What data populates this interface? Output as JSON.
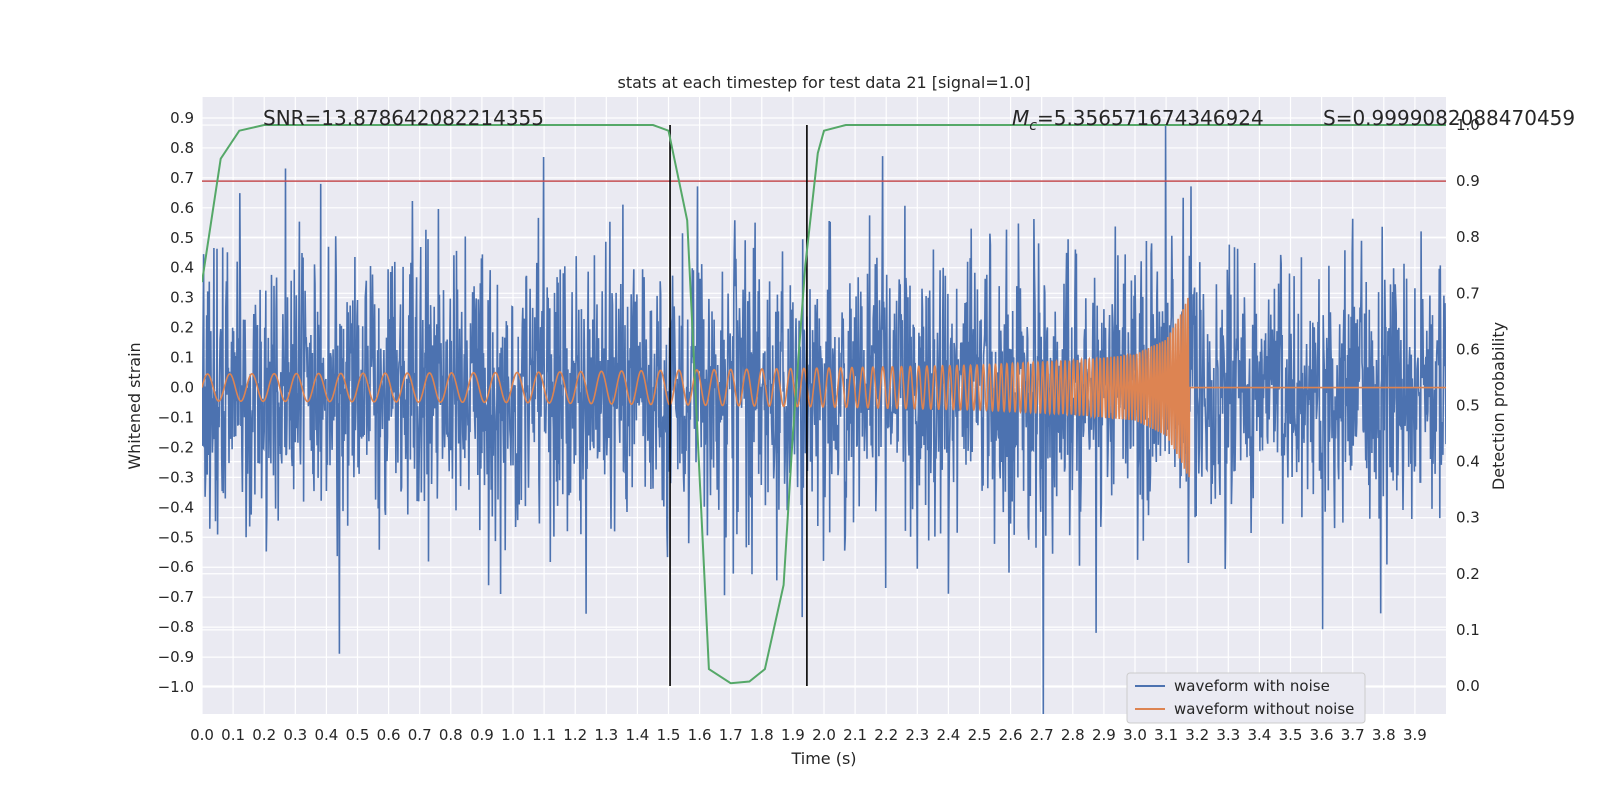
{
  "chart_data": {
    "type": "line",
    "title": "stats at each timestep for test data 21 [signal=1.0]",
    "xlabel": "Time (s)",
    "ylabel": "Whitened strain",
    "y2label": "Detection probability",
    "xlim": [
      0.0,
      4.0
    ],
    "ylim": [
      -1.09,
      0.97
    ],
    "y2lim": [
      -0.05,
      1.05
    ],
    "x_ticks": [
      0.0,
      0.1,
      0.2,
      0.3,
      0.4,
      0.5,
      0.6,
      0.7,
      0.8,
      0.9,
      1.0,
      1.1,
      1.2,
      1.3,
      1.4,
      1.5,
      1.6,
      1.7,
      1.8,
      1.9,
      2.0,
      2.1,
      2.2,
      2.3,
      2.4,
      2.5,
      2.6,
      2.7,
      2.8,
      2.9,
      3.0,
      3.1,
      3.2,
      3.3,
      3.4,
      3.5,
      3.6,
      3.7,
      3.8,
      3.9
    ],
    "x_tick_labels": [
      "0.0",
      "0.1",
      "0.2",
      "0.3",
      "0.4",
      "0.5",
      "0.6",
      "0.7",
      "0.8",
      "0.9",
      "1.0",
      "1.1",
      "1.2",
      "1.3",
      "1.4",
      "1.5",
      "1.6",
      "1.7",
      "1.8",
      "1.9",
      "2.0",
      "2.1",
      "2.2",
      "2.3",
      "2.4",
      "2.5",
      "2.6",
      "2.7",
      "2.8",
      "2.9",
      "3.0",
      "3.1",
      "3.2",
      "3.3",
      "3.4",
      "3.5",
      "3.6",
      "3.7",
      "3.8",
      "3.9"
    ],
    "y_ticks": [
      0.9,
      0.8,
      0.7,
      0.6,
      0.5,
      0.4,
      0.3,
      0.2,
      0.1,
      0.0,
      -0.1,
      -0.2,
      -0.3,
      -0.4,
      -0.5,
      -0.6,
      -0.7,
      -0.8,
      -0.9,
      -1.0
    ],
    "y_tick_labels": [
      "0.9",
      "0.8",
      "0.7",
      "0.6",
      "0.5",
      "0.4",
      "0.3",
      "0.2",
      "0.1",
      "0.0",
      "−0.1",
      "−0.2",
      "−0.3",
      "−0.4",
      "−0.5",
      "−0.6",
      "−0.7",
      "−0.8",
      "−0.9",
      "−1.0"
    ],
    "y2_ticks": [
      1.0,
      0.9,
      0.8,
      0.7,
      0.6,
      0.5,
      0.4,
      0.3,
      0.2,
      0.1,
      0.0
    ],
    "y2_tick_labels": [
      "1.0",
      "0.9",
      "0.8",
      "0.7",
      "0.6",
      "0.5",
      "0.4",
      "0.3",
      "0.2",
      "0.1",
      "0.0"
    ],
    "grid": true,
    "legend_placement": "lower-right",
    "annotations": {
      "snr": "SNR=13.878642082214355",
      "mc_symbol": "M",
      "mc_sub": "c",
      "mc_value": "=5.356571674346924",
      "s": "S=0.9999082088470459"
    },
    "threshold_line": {
      "axis": "y2",
      "value": 0.9,
      "color": "#c44e52"
    },
    "vertical_lines": [
      1.505,
      1.945
    ],
    "series": [
      {
        "name": "waveform with noise",
        "color": "#4c72b0",
        "axis": "y",
        "amplitude_envelope_x": [
          0.0,
          0.5,
          1.0,
          1.5,
          2.0,
          2.5,
          3.0,
          3.1,
          3.17,
          3.3,
          3.6,
          4.0
        ],
        "amplitude_envelope_y": [
          0.55,
          0.55,
          0.55,
          0.56,
          0.56,
          0.56,
          0.58,
          0.6,
          0.62,
          0.55,
          0.55,
          0.55
        ]
      },
      {
        "name": "waveform without noise",
        "color": "#dd8452",
        "axis": "y",
        "amplitude_x": [
          0.0,
          1.0,
          2.0,
          2.5,
          2.8,
          3.0,
          3.1,
          3.15,
          3.17
        ],
        "amplitude_y": [
          0.045,
          0.05,
          0.065,
          0.075,
          0.09,
          0.11,
          0.16,
          0.25,
          0.3
        ],
        "merger_time": 3.175,
        "freq_start_hz": 14,
        "freq_end_hz": 130
      },
      {
        "name": "detection probability",
        "color": "#55a868",
        "axis": "y2",
        "x": [
          0.0,
          0.06,
          0.12,
          0.2,
          0.3,
          0.5,
          1.0,
          1.45,
          1.5,
          1.56,
          1.63,
          1.7,
          1.76,
          1.81,
          1.87,
          1.9,
          1.94,
          1.98,
          2.0,
          2.07,
          2.2,
          2.5,
          3.0,
          3.5,
          4.0
        ],
        "y": [
          0.72,
          0.94,
          0.99,
          1.0,
          1.0,
          1.0,
          1.0,
          1.0,
          0.99,
          0.83,
          0.03,
          0.005,
          0.008,
          0.03,
          0.18,
          0.45,
          0.75,
          0.95,
          0.99,
          1.0,
          1.0,
          1.0,
          1.0,
          1.0,
          1.0
        ]
      }
    ]
  }
}
